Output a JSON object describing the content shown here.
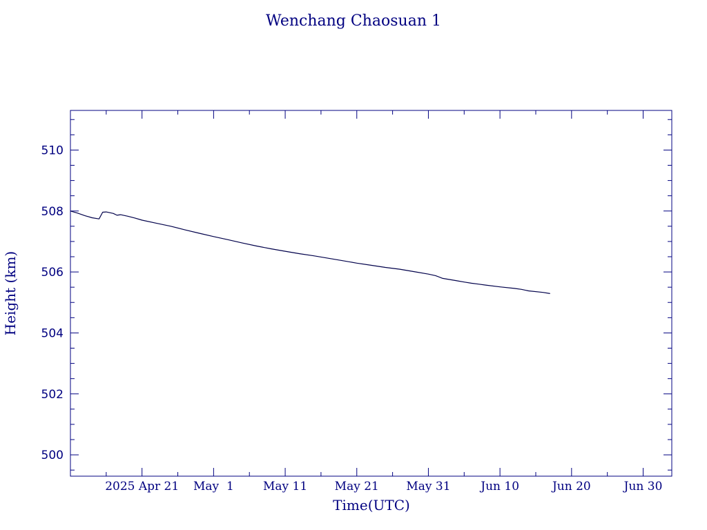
{
  "chart_data": {
    "type": "line",
    "title": "Wenchang Chaosuan 1",
    "xlabel": "Time(UTC)",
    "ylabel": "Height (km)",
    "xlim": [
      "2025-04-11",
      "2025-07-04"
    ],
    "ylim": [
      499.3,
      511.3
    ],
    "x_tick_labels": [
      "2025 Apr 21",
      "May  1",
      "May 11",
      "May 21",
      "May 31",
      "Jun 10",
      "Jun 20",
      "Jun 30"
    ],
    "x_tick_dates": [
      "2025-04-21",
      "2025-05-01",
      "2025-05-11",
      "2025-05-21",
      "2025-05-31",
      "2025-06-10",
      "2025-06-20",
      "2025-06-30"
    ],
    "y_ticks": [
      500,
      502,
      504,
      506,
      508,
      510
    ],
    "grid": false,
    "colors": {
      "ink": "#000080",
      "line": "#00004a"
    },
    "series": [
      {
        "x": [
          "2025-04-11",
          "2025-04-12",
          "2025-04-13",
          "2025-04-14",
          "2025-04-15",
          "2025-04-15T12:00",
          "2025-04-16",
          "2025-04-17",
          "2025-04-17T12:00",
          "2025-04-18",
          "2025-04-19",
          "2025-04-20",
          "2025-04-21",
          "2025-04-23",
          "2025-04-25",
          "2025-04-27",
          "2025-04-29",
          "2025-05-01",
          "2025-05-03",
          "2025-05-05",
          "2025-05-07",
          "2025-05-09",
          "2025-05-11",
          "2025-05-13",
          "2025-05-15",
          "2025-05-17",
          "2025-05-19",
          "2025-05-21",
          "2025-05-23",
          "2025-05-25",
          "2025-05-27",
          "2025-05-29",
          "2025-05-31",
          "2025-06-01",
          "2025-06-02",
          "2025-06-03",
          "2025-06-04",
          "2025-06-05",
          "2025-06-06",
          "2025-06-07",
          "2025-06-08",
          "2025-06-10",
          "2025-06-12",
          "2025-06-13",
          "2025-06-14",
          "2025-06-16",
          "2025-06-17"
        ],
        "y": [
          508.0,
          507.93,
          507.85,
          507.78,
          507.74,
          507.96,
          507.97,
          507.92,
          507.86,
          507.88,
          507.83,
          507.77,
          507.7,
          507.6,
          507.5,
          507.38,
          507.27,
          507.16,
          507.06,
          506.95,
          506.85,
          506.76,
          506.68,
          506.6,
          506.53,
          506.45,
          506.37,
          506.29,
          506.22,
          506.15,
          506.09,
          506.01,
          505.93,
          505.88,
          505.79,
          505.75,
          505.71,
          505.67,
          505.63,
          505.6,
          505.57,
          505.51,
          505.46,
          505.43,
          505.38,
          505.33,
          505.29
        ]
      }
    ]
  }
}
